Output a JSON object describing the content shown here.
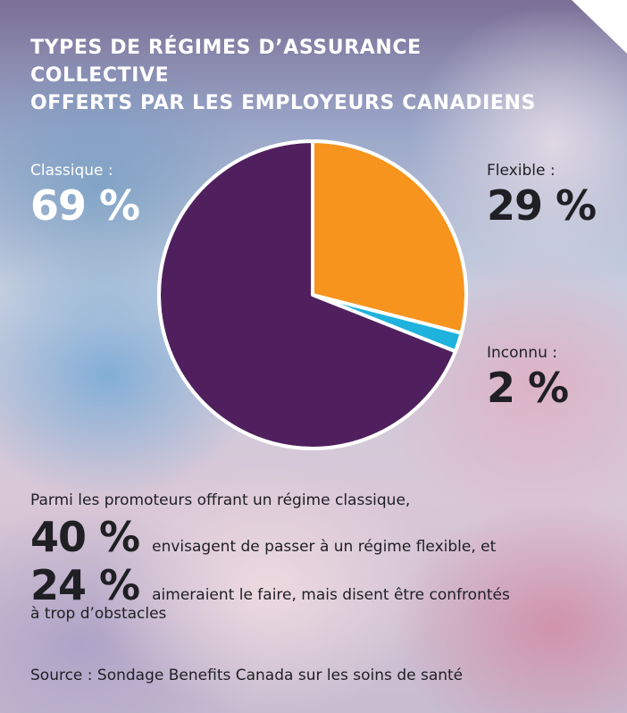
{
  "title": "TYPES DE RÉGIMES D’ASSURANCE COLLECTIVE\nOFFERTS PAR LES EMPLOYEURS CANADIENS",
  "chart_data": {
    "type": "pie",
    "title": "TYPES DE RÉGIMES D’ASSURANCE COLLECTIVE OFFERTS PAR LES EMPLOYEURS CANADIENS",
    "slices": [
      {
        "label": "Flexible",
        "value": 29,
        "value_label": "29 %",
        "color": "#f7941d"
      },
      {
        "label": "Inconnu",
        "value": 2,
        "value_label": "2 %",
        "color": "#1fb2dc"
      },
      {
        "label": "Classique",
        "value": 69,
        "value_label": "69 %",
        "color": "#50205e"
      }
    ]
  },
  "labels": {
    "classique": {
      "name": "Classique :",
      "pct": "69 %"
    },
    "flexible": {
      "name": "Flexible :",
      "pct": "29 %"
    },
    "inconnu": {
      "name": "Inconnu :",
      "pct": "2 %"
    }
  },
  "footer": {
    "intro": "Parmi les promoteurs offrant un régime classique,",
    "stat1_value": "40 %",
    "stat1_text": "envisagent de passer à un régime flexible, et",
    "stat2_value": "24 %",
    "stat2_text": "aimeraient le faire, mais disent être confrontés",
    "stat2_cont": "à trop d’obstacles",
    "source": "Source : Sondage Benefits Canada sur les soins de santé"
  }
}
